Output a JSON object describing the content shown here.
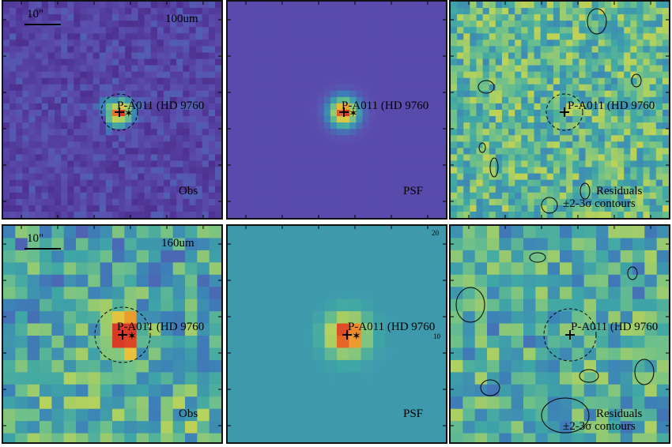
{
  "rows": [
    {
      "band": "100um",
      "scale_label": "10\"",
      "source_label": "P-A011 (HD 9760",
      "panels": [
        {
          "kind": "obs",
          "label": "Obs"
        },
        {
          "kind": "psf",
          "label": "PSF"
        },
        {
          "kind": "res",
          "label_line1": "Residuals",
          "label_line2": "±2-3σ contours"
        }
      ]
    },
    {
      "band": "160um",
      "scale_label": "10\"",
      "source_label": "P-A011 (HD 9760",
      "panels": [
        {
          "kind": "obs",
          "label": "Obs"
        },
        {
          "kind": "psf",
          "label": "PSF"
        },
        {
          "kind": "res",
          "label_line1": "Residuals",
          "label_line2": "±2-3σ contours"
        }
      ]
    }
  ],
  "psf_axis_ticks": [
    "20",
    "10"
  ],
  "colors": {
    "obs_bg": "#5a3f9a",
    "psf_bg_top": "#3b47a0",
    "psf_bg_bottom": "#4a8ab0",
    "res_bg": "#6fb98a",
    "peak": "#e04a2a",
    "border": "#111111"
  }
}
